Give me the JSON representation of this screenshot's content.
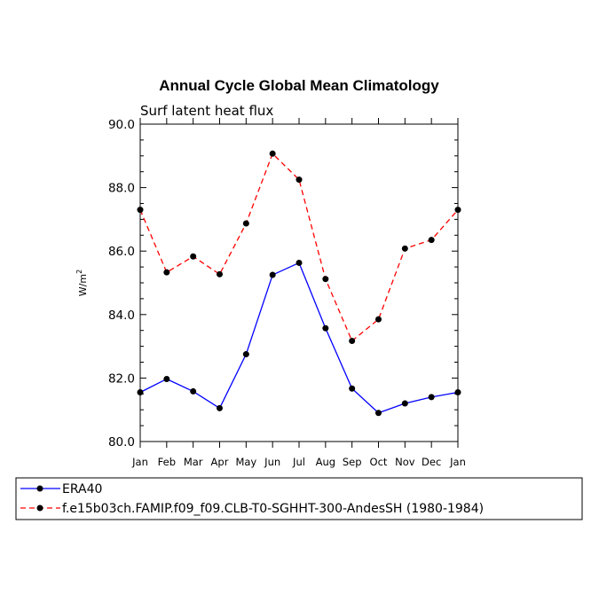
{
  "chart_data": {
    "type": "line",
    "title": "Annual Cycle Global Mean Climatology",
    "subtitle": "Surf latent heat flux",
    "ylabel": "W/m",
    "ylabel_sup": "2",
    "xlabel": "",
    "ylim": [
      80.0,
      90.0
    ],
    "yticks": [
      "80.0",
      "82.0",
      "84.0",
      "86.0",
      "88.0",
      "90.0"
    ],
    "categories": [
      "Jan",
      "Feb",
      "Mar",
      "Apr",
      "May",
      "Jun",
      "Jul",
      "Aug",
      "Sep",
      "Oct",
      "Nov",
      "Dec",
      "Jan"
    ],
    "grid": false,
    "legend_position": "bottom",
    "series": [
      {
        "name": "ERA40",
        "color": "#0000ff",
        "dash": "solid",
        "values": [
          81.55,
          81.97,
          81.58,
          81.05,
          82.75,
          85.25,
          85.63,
          83.57,
          81.67,
          80.9,
          81.2,
          81.4,
          81.55
        ]
      },
      {
        "name": "f.e15b03ch.FAMIP.f09_f09.CLB-T0-SGHHT-300-AndesSH (1980-1984)",
        "color": "#ff0000",
        "dash": "dashed",
        "values": [
          87.3,
          85.33,
          85.83,
          85.27,
          86.87,
          89.07,
          88.25,
          85.12,
          83.17,
          83.85,
          86.08,
          86.35,
          87.3
        ]
      }
    ]
  }
}
